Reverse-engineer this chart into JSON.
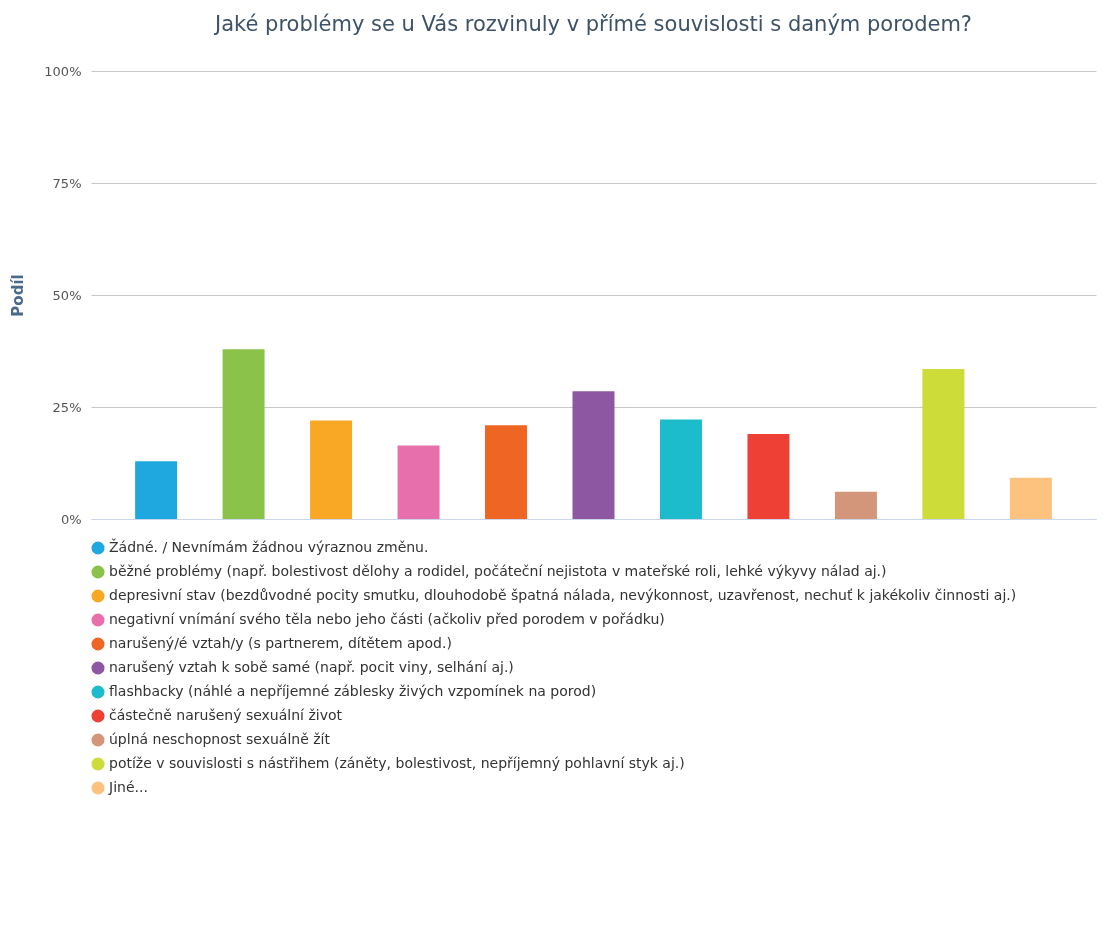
{
  "chart_data": {
    "type": "bar",
    "title": "Jaké problémy se u Vás rozvinuly v přímé souvislosti s daným porodem?",
    "ylabel": "Podíl",
    "categories": [
      null
    ],
    "series": [
      {
        "name": "Žádné. / Nevnímám žádnou výraznou změnu.",
        "color": "#1fa8e0",
        "values": [
          12.9
        ]
      },
      {
        "name": "běžné problémy (např. bolestivost dělohy a rodidel, počáteční nejistota v mateřské roli, lehké výkyvy nálad aj.)",
        "color": "#8bc34a",
        "values": [
          37.9
        ]
      },
      {
        "name": "depresivní stav (bezdůvodné pocity smutku, dlouhodobě špatná nálada, nevýkonnost, uzavřenost, nechuť k jakékoliv činnosti aj.)",
        "color": "#f9a825",
        "values": [
          22.0
        ]
      },
      {
        "name": "negativní vnímání svého těla nebo jeho části (ačkoliv před porodem v pořádku)",
        "color": "#e76fab",
        "values": [
          16.4
        ]
      },
      {
        "name": "narušený/é vztah/y (s partnerem, dítětem apod.)",
        "color": "#ef6524",
        "values": [
          20.9
        ]
      },
      {
        "name": "narušený vztah k sobě samé (např. pocit viny, selhání aj.)",
        "color": "#8e57a1",
        "values": [
          28.5
        ]
      },
      {
        "name": "flashbacky (náhlé a nepříjemné záblesky živých vzpomínek na porod)",
        "color": "#1cbccd",
        "values": [
          22.2
        ]
      },
      {
        "name": "částečně narušený sexuální život",
        "color": "#ee4035",
        "values": [
          19.0
        ]
      },
      {
        "name": "úplná neschopnost sexuálně žít",
        "color": "#d4967a",
        "values": [
          6.1
        ]
      },
      {
        "name": "potíže v souvislosti s nástřihem (záněty, bolestivost, nepříjemný pohlavní styk aj.)",
        "color": "#cddc39",
        "values": [
          33.5
        ]
      },
      {
        "name": "Jiné...",
        "color": "#fcc27e",
        "values": [
          9.2
        ]
      }
    ],
    "ylim": [
      0,
      100
    ],
    "yticks": [
      {
        "value": 0,
        "label": "0%"
      },
      {
        "value": 25,
        "label": "25%"
      },
      {
        "value": 50,
        "label": "50%"
      },
      {
        "value": 75,
        "label": "75%"
      },
      {
        "value": 100,
        "label": "100%"
      }
    ],
    "grid": "y",
    "legend": "bottom",
    "tick_labels": "y"
  }
}
